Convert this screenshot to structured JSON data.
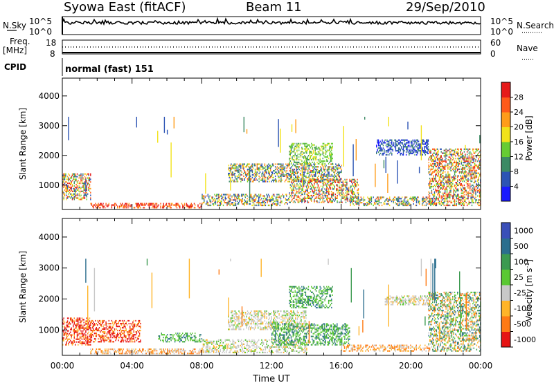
{
  "header": {
    "title_left": "Syowa East (fitACF)",
    "title_center": "Beam 11",
    "title_right": "29/Sep/2010"
  },
  "aux": {
    "nsky_label": "N.Sky",
    "nsearch_label": "N.Search",
    "noise_tick_top": "10^5",
    "noise_tick_bottom": "10^0",
    "freq_label_1": "Freq.",
    "freq_label_2": "[MHz]",
    "freq_tick_top": "18",
    "freq_tick_bottom": "8",
    "nave_label": "Nave",
    "nave_tick_top": "60",
    "nave_tick_bottom": "0",
    "cpid_label": "CPID",
    "cpid_value": "normal (fast) 151"
  },
  "colors": {
    "power": [
      "#1a1aff",
      "#2c54b4",
      "#3c8a64",
      "#66cc33",
      "#f2e21a",
      "#ff9c1a",
      "#ff5a1a",
      "#e61a1a"
    ],
    "velocity": [
      "#3a4fb8",
      "#2b6e8e",
      "#3c9a50",
      "#5ac832",
      "#c8c8c8",
      "#ffb428",
      "#ff7a14",
      "#e61414"
    ]
  },
  "chart_data": [
    {
      "type": "heatmap",
      "name": "power",
      "ylabel": "Slant Range [km]",
      "ylim": [
        180,
        4600
      ],
      "yticks": [
        "1000",
        "2000",
        "3000",
        "4000"
      ],
      "xticks": [
        "00:00",
        "04:00",
        "08:00",
        "12:00",
        "16:00",
        "20:00",
        "00:00"
      ],
      "xlim_hours": [
        0,
        24
      ],
      "colorbar_label": "Power [dB]",
      "colorbar_ticks": [
        "4",
        "8",
        "12",
        "16",
        "20",
        "24",
        "28"
      ],
      "colorbar_range": [
        0,
        32
      ],
      "regions": [
        {
          "x": [
            0.0,
            1.6
          ],
          "y": [
            500,
            1400
          ],
          "class": "mix_hot"
        },
        {
          "x": [
            1.6,
            8.0
          ],
          "y": [
            220,
            400
          ],
          "class": "low_hot"
        },
        {
          "x": [
            8.0,
            13.0
          ],
          "y": [
            300,
            700
          ],
          "class": "mix"
        },
        {
          "x": [
            9.5,
            16.0
          ],
          "y": [
            1100,
            1700
          ],
          "class": "mix"
        },
        {
          "x": [
            13.0,
            17.0
          ],
          "y": [
            400,
            1200
          ],
          "class": "mix_hot"
        },
        {
          "x": [
            13.0,
            15.5
          ],
          "y": [
            1700,
            2400
          ],
          "class": "green"
        },
        {
          "x": [
            16.5,
            21.5
          ],
          "y": [
            300,
            600
          ],
          "class": "mix"
        },
        {
          "x": [
            18.0,
            21.0
          ],
          "y": [
            2000,
            2500
          ],
          "class": "blue"
        },
        {
          "x": [
            21.0,
            24.0
          ],
          "y": [
            300,
            2200
          ],
          "class": "mix_hot"
        },
        {
          "x": [
            0.0,
            24.0
          ],
          "y": [
            400,
            3300
          ],
          "class": "sparse"
        }
      ]
    },
    {
      "type": "heatmap",
      "name": "velocity",
      "ylabel": "Slant Range [km]",
      "ylim": [
        180,
        4600
      ],
      "yticks": [
        "1000",
        "2000",
        "3000",
        "4000"
      ],
      "xticks": [
        "00:00",
        "04:00",
        "08:00",
        "12:00",
        "16:00",
        "20:00",
        "00:00"
      ],
      "xlim_hours": [
        0,
        24
      ],
      "xlabel": "Time UT",
      "colorbar_label": "Velocity [m s",
      "colorbar_label_sup": "-1",
      "colorbar_label_end": "]",
      "colorbar_ticks": [
        "1000",
        "500",
        "100",
        "25",
        "-25",
        "-100",
        "-500",
        "-1000"
      ],
      "regions": [
        {
          "x": [
            0.0,
            1.6
          ],
          "y": [
            500,
            1400
          ],
          "class": "red"
        },
        {
          "x": [
            1.6,
            4.5
          ],
          "y": [
            600,
            1300
          ],
          "class": "red"
        },
        {
          "x": [
            1.6,
            8.0
          ],
          "y": [
            220,
            400
          ],
          "class": "orange"
        },
        {
          "x": [
            5.5,
            8.0
          ],
          "y": [
            600,
            900
          ],
          "class": "green"
        },
        {
          "x": [
            8.0,
            14.0
          ],
          "y": [
            250,
            700
          ],
          "class": "grey"
        },
        {
          "x": [
            9.5,
            14.0
          ],
          "y": [
            1000,
            1600
          ],
          "class": "grey"
        },
        {
          "x": [
            12.0,
            16.5
          ],
          "y": [
            500,
            1200
          ],
          "class": "green"
        },
        {
          "x": [
            13.0,
            15.5
          ],
          "y": [
            1700,
            2400
          ],
          "class": "green"
        },
        {
          "x": [
            16.0,
            21.0
          ],
          "y": [
            300,
            500
          ],
          "class": "orange"
        },
        {
          "x": [
            18.5,
            21.0
          ],
          "y": [
            1800,
            2100
          ],
          "class": "grey"
        },
        {
          "x": [
            21.0,
            24.0
          ],
          "y": [
            300,
            2200
          ],
          "class": "mixv"
        },
        {
          "x": [
            0.0,
            24.0
          ],
          "y": [
            400,
            3300
          ],
          "class": "sparse"
        }
      ]
    }
  ]
}
